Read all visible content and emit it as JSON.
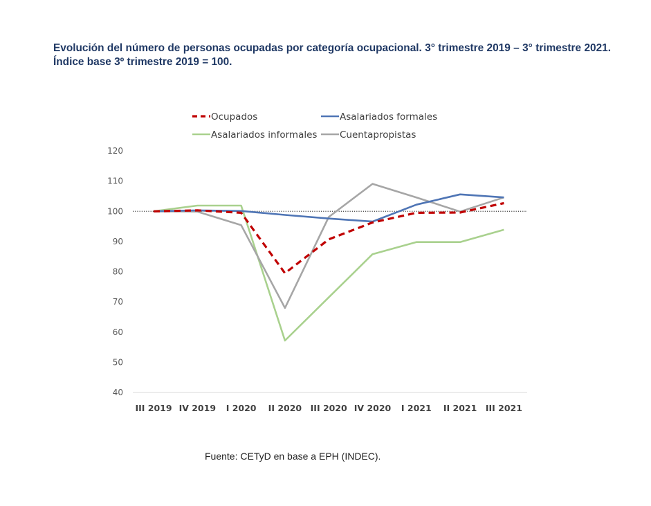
{
  "title": "Evolución del número de personas ocupadas por categoría ocupacional. 3° trimestre 2019 – 3° trimestre 2021. Índice base 3º trimestre 2019 = 100.",
  "source": "Fuente: CETyD en base a EPH (INDEC).",
  "chart_data": {
    "type": "line",
    "title": "Evolución del número de personas ocupadas por categoría ocupacional. 3° trimestre 2019 – 3° trimestre 2021. Índice base 3º trimestre 2019 = 100.",
    "xlabel": "",
    "ylabel": "",
    "categories": [
      "III 2019",
      "IV 2019",
      "I 2020",
      "II 2020",
      "III 2020",
      "IV 2020",
      "I 2021",
      "II 2021",
      "III 2021"
    ],
    "ylim": [
      40,
      120
    ],
    "yticks": [
      40,
      50,
      60,
      70,
      80,
      90,
      100,
      110,
      120
    ],
    "reference_line": 100,
    "grid": false,
    "legend_position": "top",
    "series": [
      {
        "name": "Ocupados",
        "color": "#c00000",
        "style": "dashed",
        "values": [
          100,
          100.3,
          99.5,
          79.5,
          90.7,
          96.3,
          99.5,
          99.6,
          102.7
        ]
      },
      {
        "name": "Asalariados formales",
        "color": "#4f75b5",
        "style": "solid",
        "values": [
          100,
          100.3,
          100.1,
          98.8,
          97.6,
          96.6,
          102.2,
          105.6,
          104.6
        ]
      },
      {
        "name": "Asalariados informales",
        "color": "#a9d18e",
        "style": "solid",
        "values": [
          100,
          101.9,
          101.9,
          57.2,
          71.5,
          85.8,
          89.8,
          89.8,
          93.9
        ]
      },
      {
        "name": "Cuentapropistas",
        "color": "#a6a6a6",
        "style": "solid",
        "values": [
          100,
          99.9,
          95.4,
          68.0,
          98.1,
          109.1,
          104.6,
          99.9,
          104.6
        ]
      }
    ]
  }
}
